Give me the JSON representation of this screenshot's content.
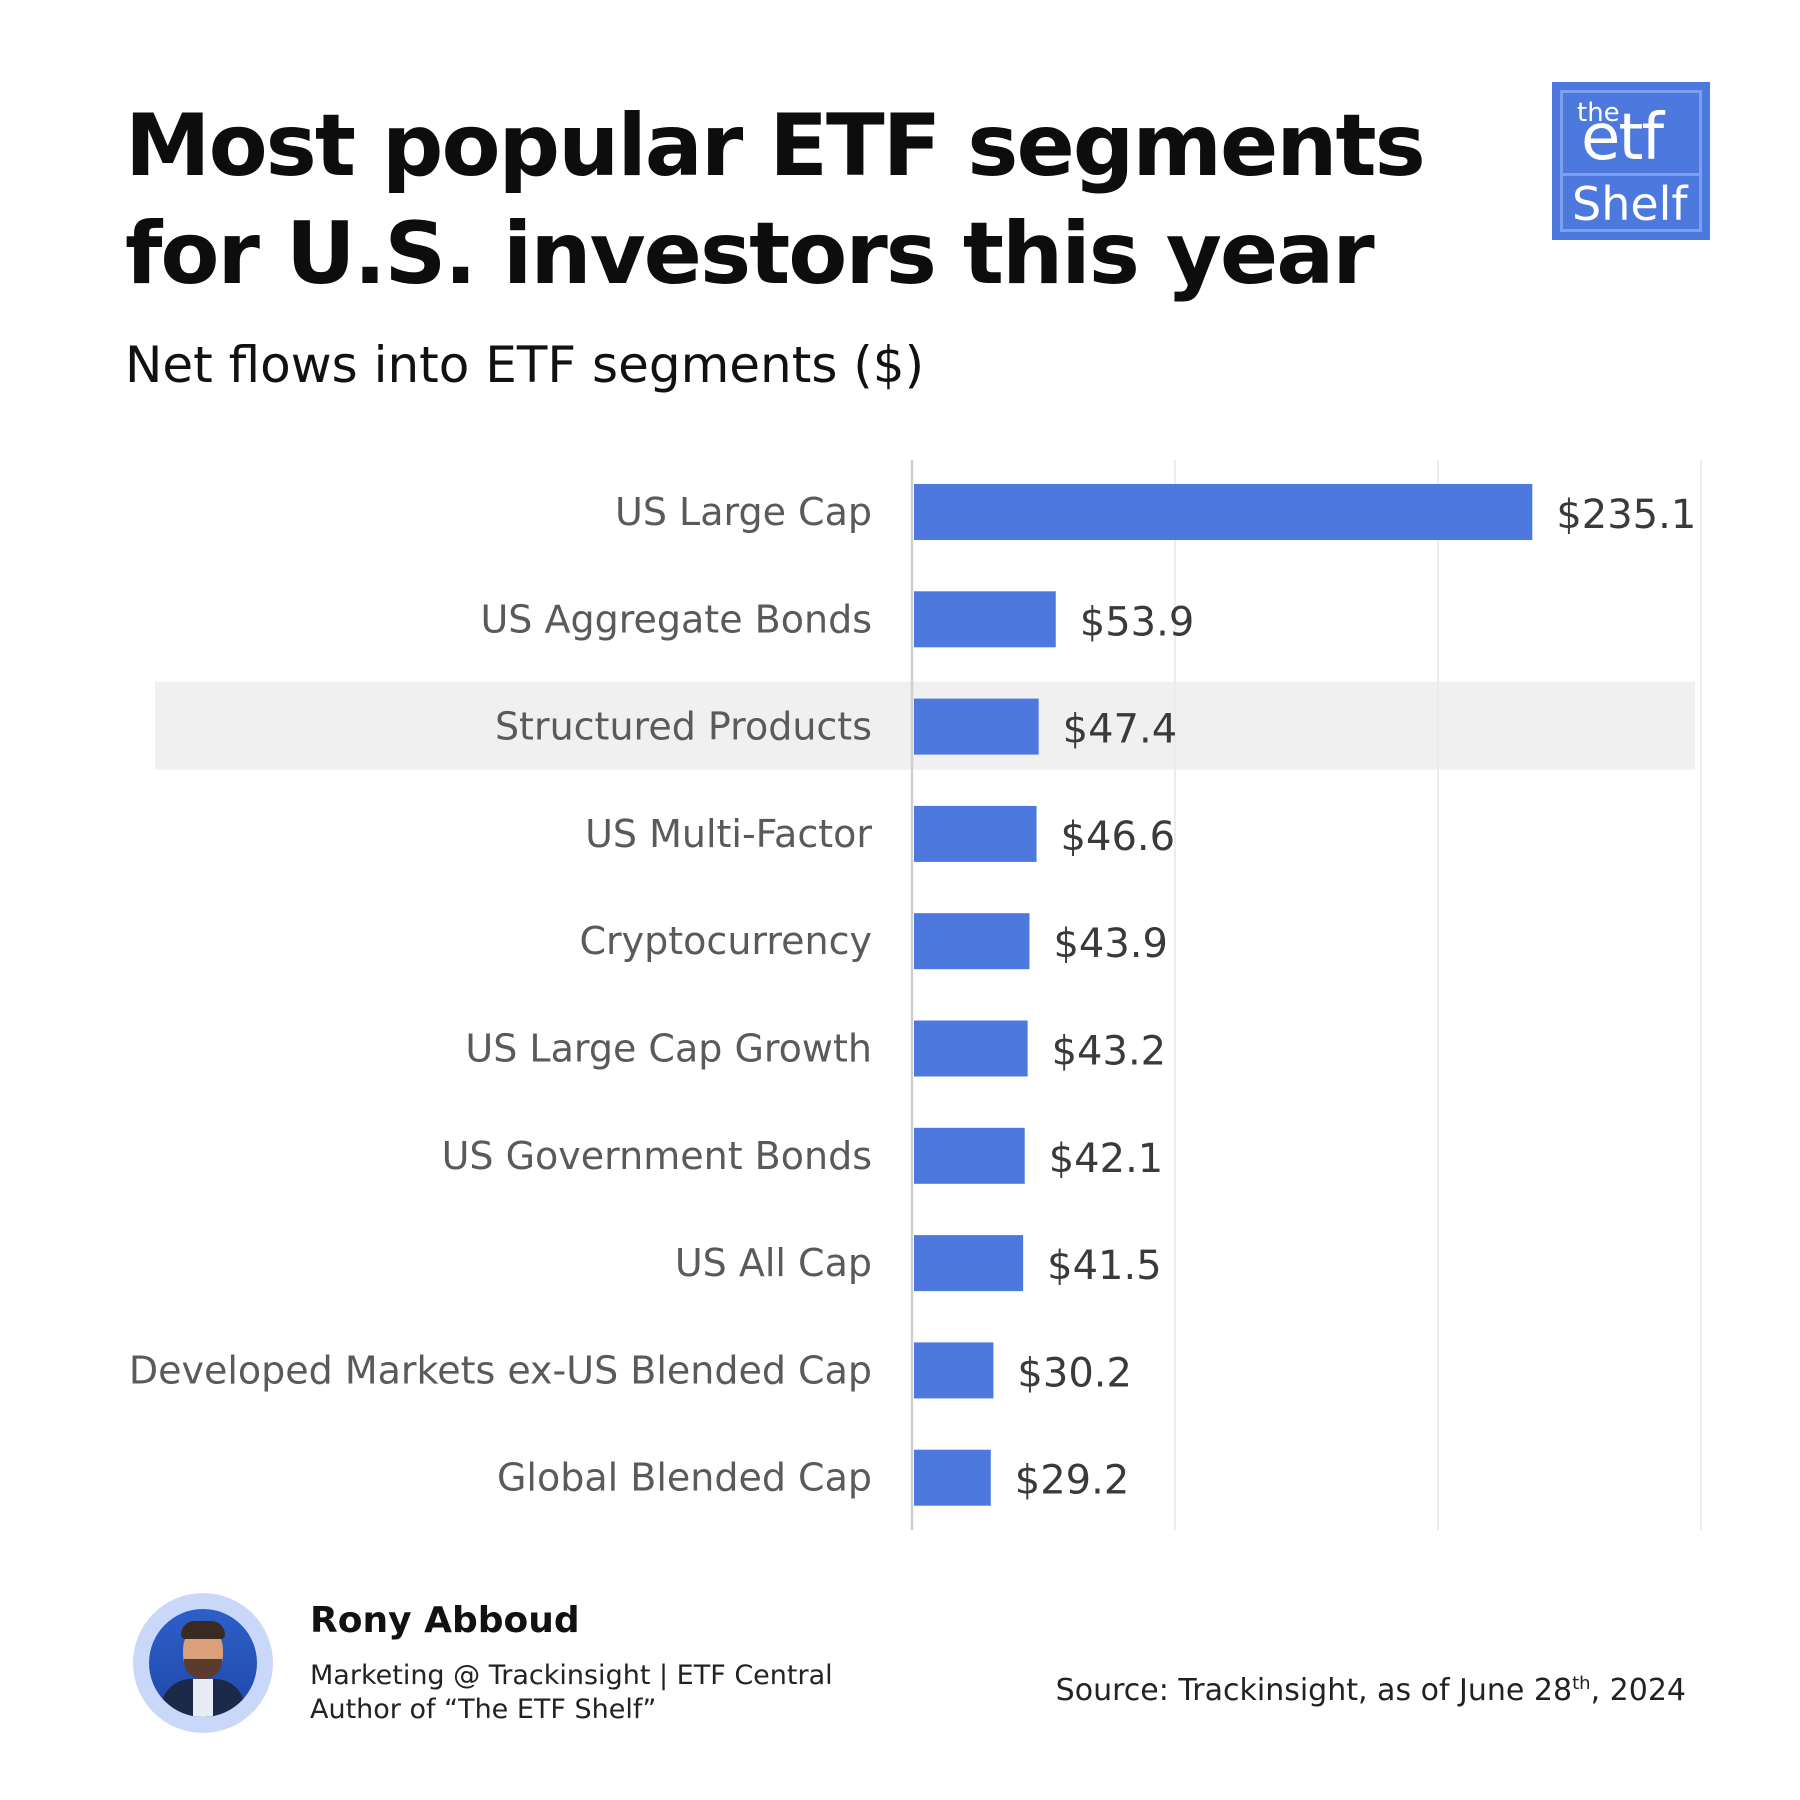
{
  "header": {
    "title_line1": "Most popular ETF segments",
    "title_line2": "for U.S. investors this year",
    "subtitle": "Net flows into ETF segments ($)"
  },
  "logo": {
    "the": "the",
    "etf": "etf",
    "shelf": "Shelf"
  },
  "chart_data": {
    "type": "bar",
    "orientation": "horizontal",
    "title": "Net flows into ETF segments ($)",
    "xlabel": "",
    "ylabel": "",
    "categories": [
      "US Large Cap",
      "US Aggregate Bonds",
      "Structured Products",
      "US Multi-Factor",
      "Cryptocurrency",
      "US Large Cap Growth",
      "US Government Bonds",
      "US All Cap",
      "Developed Markets ex-US Blended Cap",
      "Global Blended Cap"
    ],
    "values": [
      235.1,
      53.9,
      47.4,
      46.6,
      43.9,
      43.2,
      42.1,
      41.5,
      30.2,
      29.2
    ],
    "value_labels": [
      "$235.1",
      "$53.9",
      "$47.4",
      "$46.6",
      "$43.9",
      "$43.2",
      "$42.1",
      "$41.5",
      "$30.2",
      "$29.2"
    ],
    "highlighted_category": "Structured Products",
    "xlim": [
      0,
      300
    ],
    "grid": true,
    "bar_color": "#4d78de",
    "highlight_color": "#f0f0f0"
  },
  "footer": {
    "author_name": "Rony Abboud",
    "author_role": "Marketing @ Trackinsight | ETF Central",
    "author_book": "Author of “The ETF Shelf”",
    "source_prefix": "Source: Trackinsight, as of June 28",
    "source_sup": "th",
    "source_suffix": ", 2024"
  }
}
